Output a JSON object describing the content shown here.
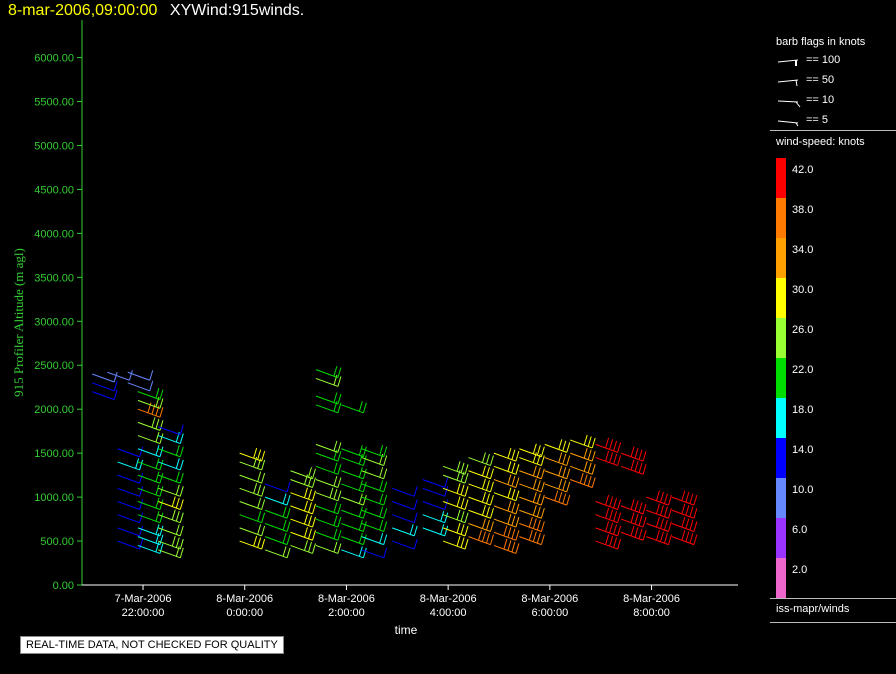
{
  "header": {
    "time_label": "8-mar-2006,09:00:00",
    "title": "XYWind:915winds."
  },
  "qc_note": "REAL-TIME DATA, NOT CHECKED FOR QUALITY",
  "panel": {
    "flags_title": "barb flags in knots",
    "flags": [
      "== 100",
      "== 50",
      "== 10",
      "== 5"
    ],
    "scale_title": "wind-speed: knots",
    "footer": "iss-mapr/winds"
  },
  "colors": {
    "axis": "#33cc33",
    "scale": [
      {
        "label": "42.0",
        "color": "#ff0000"
      },
      {
        "label": "38.0",
        "color": "#ff7a00"
      },
      {
        "label": "34.0",
        "color": "#ffa000"
      },
      {
        "label": "30.0",
        "color": "#ffff00"
      },
      {
        "label": "26.0",
        "color": "#99ff33"
      },
      {
        "label": "22.0",
        "color": "#00dd00"
      },
      {
        "label": "18.0",
        "color": "#00ffff"
      },
      {
        "label": "14.0",
        "color": "#0000ff"
      },
      {
        "label": "10.0",
        "color": "#6688ff"
      },
      {
        "label": "6.0",
        "color": "#9933ff"
      },
      {
        "label": "2.0",
        "color": "#ee66cc"
      }
    ]
  },
  "chart_data": {
    "type": "scatter",
    "title": "XYWind:915winds.",
    "xlabel": "time",
    "ylabel": "915 Profiler Altitude (m agl)",
    "ylim": [
      0,
      6200
    ],
    "y_ticks": [
      "0.00",
      "500.00",
      "1000.00",
      "1500.00",
      "2000.00",
      "2500.00",
      "3000.00",
      "3500.00",
      "4000.00",
      "4500.00",
      "5000.00",
      "5500.00",
      "6000.00"
    ],
    "x_ticks": [
      {
        "date": "7-Mar-2006",
        "time": "22:00:00",
        "hour": 22
      },
      {
        "date": "8-Mar-2006",
        "time": "0:00:00",
        "hour": 24
      },
      {
        "date": "8-Mar-2006",
        "time": "2:00:00",
        "hour": 26
      },
      {
        "date": "8-Mar-2006",
        "time": "4:00:00",
        "hour": 28
      },
      {
        "date": "8-Mar-2006",
        "time": "6:00:00",
        "hour": 30
      },
      {
        "date": "8-Mar-2006",
        "time": "8:00:00",
        "hour": 32
      }
    ],
    "xlim_hours": [
      20.8,
      33.7
    ],
    "profiles": [
      {
        "t": 21.0,
        "levels": [
          [
            2200,
            14
          ],
          [
            2300,
            12
          ],
          [
            2400,
            10
          ]
        ]
      },
      {
        "t": 21.3,
        "levels": [
          [
            2420,
            8
          ]
        ]
      },
      {
        "t": 21.5,
        "levels": [
          [
            500,
            14
          ],
          [
            650,
            14
          ],
          [
            800,
            12
          ],
          [
            950,
            12
          ],
          [
            1100,
            13
          ],
          [
            1250,
            14
          ],
          [
            1400,
            16
          ],
          [
            1550,
            14
          ]
        ]
      },
      {
        "t": 21.7,
        "levels": [
          [
            2300,
            8
          ],
          [
            2420,
            10
          ]
        ]
      },
      {
        "t": 21.9,
        "levels": [
          [
            450,
            16
          ],
          [
            550,
            17
          ],
          [
            650,
            18
          ],
          [
            800,
            20
          ],
          [
            950,
            20
          ],
          [
            1100,
            22
          ],
          [
            1250,
            22
          ],
          [
            1400,
            20
          ],
          [
            1550,
            18
          ],
          [
            1700,
            24
          ],
          [
            1850,
            26
          ],
          [
            2000,
            36
          ],
          [
            2100,
            24
          ],
          [
            2200,
            22
          ]
        ]
      },
      {
        "t": 22.3,
        "levels": [
          [
            400,
            24
          ],
          [
            500,
            26
          ],
          [
            650,
            24
          ],
          [
            800,
            26
          ],
          [
            950,
            28
          ],
          [
            1100,
            24
          ],
          [
            1250,
            20
          ],
          [
            1400,
            18
          ],
          [
            1550,
            22
          ],
          [
            1700,
            16
          ],
          [
            1800,
            14
          ]
        ]
      },
      {
        "t": 23.9,
        "levels": [
          [
            500,
            28
          ],
          [
            650,
            24
          ],
          [
            800,
            22
          ],
          [
            950,
            24
          ],
          [
            1100,
            26
          ],
          [
            1250,
            24
          ],
          [
            1400,
            26
          ],
          [
            1500,
            28
          ]
        ]
      },
      {
        "t": 24.4,
        "levels": [
          [
            400,
            24
          ],
          [
            550,
            22
          ],
          [
            700,
            22
          ],
          [
            850,
            20
          ],
          [
            1000,
            18
          ],
          [
            1150,
            14
          ]
        ]
      },
      {
        "t": 24.9,
        "levels": [
          [
            450,
            26
          ],
          [
            600,
            28
          ],
          [
            750,
            28
          ],
          [
            900,
            30
          ],
          [
            1050,
            28
          ],
          [
            1200,
            26
          ],
          [
            1300,
            24
          ]
        ]
      },
      {
        "t": 25.4,
        "levels": [
          [
            450,
            24
          ],
          [
            600,
            22
          ],
          [
            750,
            22
          ],
          [
            900,
            22
          ],
          [
            1050,
            26
          ],
          [
            1200,
            24
          ],
          [
            1350,
            22
          ],
          [
            1500,
            20
          ],
          [
            1600,
            24
          ],
          [
            2050,
            20
          ],
          [
            2150,
            22
          ],
          [
            2350,
            24
          ],
          [
            2450,
            20
          ]
        ]
      },
      {
        "t": 25.9,
        "levels": [
          [
            400,
            18
          ],
          [
            550,
            20
          ],
          [
            700,
            22
          ],
          [
            850,
            22
          ],
          [
            1000,
            24
          ],
          [
            1150,
            22
          ],
          [
            1300,
            22
          ],
          [
            1450,
            20
          ],
          [
            1550,
            22
          ],
          [
            2050,
            22
          ]
        ]
      },
      {
        "t": 26.3,
        "levels": [
          [
            400,
            14
          ],
          [
            550,
            18
          ],
          [
            700,
            20
          ],
          [
            850,
            22
          ],
          [
            1000,
            22
          ],
          [
            1150,
            22
          ],
          [
            1300,
            24
          ],
          [
            1450,
            24
          ],
          [
            1550,
            22
          ]
        ]
      },
      {
        "t": 26.9,
        "levels": [
          [
            500,
            14
          ],
          [
            650,
            16
          ],
          [
            800,
            14
          ],
          [
            950,
            12
          ],
          [
            1100,
            14
          ]
        ]
      },
      {
        "t": 27.5,
        "levels": [
          [
            650,
            18
          ],
          [
            800,
            16
          ],
          [
            950,
            14
          ],
          [
            1100,
            14
          ],
          [
            1200,
            14
          ]
        ]
      },
      {
        "t": 27.9,
        "levels": [
          [
            500,
            30
          ],
          [
            650,
            28
          ],
          [
            800,
            26
          ],
          [
            950,
            28
          ],
          [
            1100,
            28
          ],
          [
            1250,
            26
          ],
          [
            1350,
            26
          ]
        ]
      },
      {
        "t": 28.4,
        "levels": [
          [
            550,
            36
          ],
          [
            700,
            32
          ],
          [
            850,
            30
          ],
          [
            1000,
            30
          ],
          [
            1150,
            30
          ],
          [
            1300,
            28
          ],
          [
            1450,
            26
          ]
        ]
      },
      {
        "t": 28.9,
        "levels": [
          [
            450,
            36
          ],
          [
            600,
            36
          ],
          [
            750,
            34
          ],
          [
            900,
            32
          ],
          [
            1050,
            30
          ],
          [
            1200,
            32
          ],
          [
            1350,
            30
          ],
          [
            1500,
            30
          ]
        ]
      },
      {
        "t": 29.4,
        "levels": [
          [
            550,
            36
          ],
          [
            700,
            36
          ],
          [
            850,
            34
          ],
          [
            1000,
            34
          ],
          [
            1150,
            32
          ],
          [
            1300,
            32
          ],
          [
            1450,
            30
          ],
          [
            1550,
            30
          ]
        ]
      },
      {
        "t": 29.9,
        "levels": [
          [
            1000,
            36
          ],
          [
            1150,
            34
          ],
          [
            1300,
            34
          ],
          [
            1450,
            32
          ],
          [
            1600,
            30
          ]
        ]
      },
      {
        "t": 30.4,
        "levels": [
          [
            1200,
            36
          ],
          [
            1350,
            34
          ],
          [
            1500,
            32
          ],
          [
            1650,
            30
          ]
        ]
      },
      {
        "t": 30.9,
        "levels": [
          [
            500,
            40
          ],
          [
            650,
            40
          ],
          [
            800,
            40
          ],
          [
            950,
            40
          ],
          [
            1450,
            40
          ],
          [
            1600,
            40
          ]
        ]
      },
      {
        "t": 31.4,
        "levels": [
          [
            600,
            40
          ],
          [
            750,
            42
          ],
          [
            900,
            42
          ],
          [
            1350,
            42
          ],
          [
            1500,
            42
          ]
        ]
      },
      {
        "t": 31.9,
        "levels": [
          [
            550,
            40
          ],
          [
            700,
            40
          ],
          [
            850,
            42
          ],
          [
            1000,
            40
          ]
        ]
      },
      {
        "t": 32.4,
        "levels": [
          [
            550,
            42
          ],
          [
            700,
            42
          ],
          [
            850,
            42
          ],
          [
            1000,
            42
          ]
        ]
      }
    ]
  }
}
